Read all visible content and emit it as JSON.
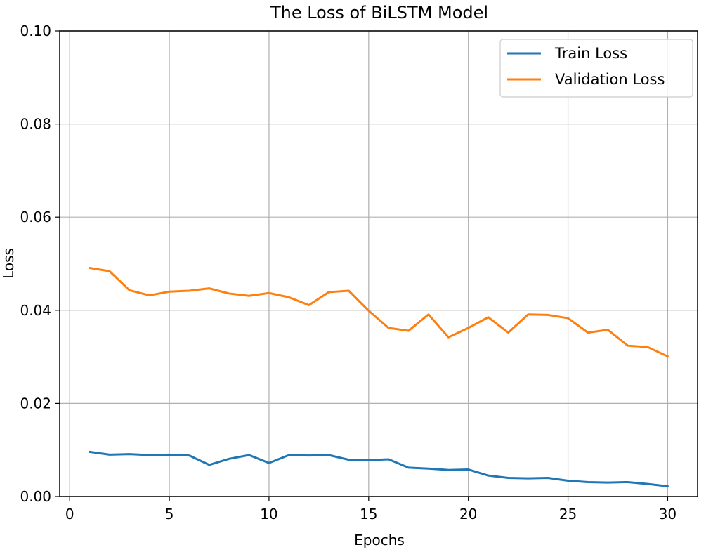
{
  "chart_data": {
    "type": "line",
    "title": "The Loss of BiLSTM Model",
    "xlabel": "Epochs",
    "ylabel": "Loss",
    "xlim": [
      -0.5,
      31.5
    ],
    "ylim": [
      0,
      0.1
    ],
    "xticks": [
      0,
      5,
      10,
      15,
      20,
      25,
      30
    ],
    "xtick_labels": [
      "0",
      "5",
      "10",
      "15",
      "20",
      "25",
      "30"
    ],
    "yticks": [
      0,
      0.02,
      0.04,
      0.06,
      0.08,
      0.1
    ],
    "ytick_labels": [
      "0.00",
      "0.02",
      "0.04",
      "0.06",
      "0.08",
      "0.10"
    ],
    "grid": true,
    "legend_position": "top-right",
    "x": [
      1,
      2,
      3,
      4,
      5,
      6,
      7,
      8,
      9,
      10,
      11,
      12,
      13,
      14,
      15,
      16,
      17,
      18,
      19,
      20,
      21,
      22,
      23,
      24,
      25,
      26,
      27,
      28,
      29,
      30
    ],
    "series": [
      {
        "name": "Train Loss",
        "color": "#1f77b4",
        "values": [
          0.0096,
          0.009,
          0.0091,
          0.0089,
          0.009,
          0.0088,
          0.0068,
          0.0081,
          0.0089,
          0.0072,
          0.0089,
          0.0088,
          0.0089,
          0.0079,
          0.0078,
          0.008,
          0.0062,
          0.006,
          0.0057,
          0.0058,
          0.0045,
          0.004,
          0.0039,
          0.004,
          0.0034,
          0.0031,
          0.003,
          0.0031,
          0.0027,
          0.0022
        ]
      },
      {
        "name": "Validation Loss",
        "color": "#ff7f0e",
        "values": [
          0.0491,
          0.0484,
          0.0443,
          0.0432,
          0.044,
          0.0442,
          0.0447,
          0.0436,
          0.0431,
          0.0437,
          0.0428,
          0.0411,
          0.0439,
          0.0442,
          0.0399,
          0.0362,
          0.0356,
          0.0391,
          0.0342,
          0.0362,
          0.0385,
          0.0352,
          0.0391,
          0.039,
          0.0383,
          0.0352,
          0.0358,
          0.0324,
          0.0321,
          0.0301
        ]
      }
    ]
  }
}
